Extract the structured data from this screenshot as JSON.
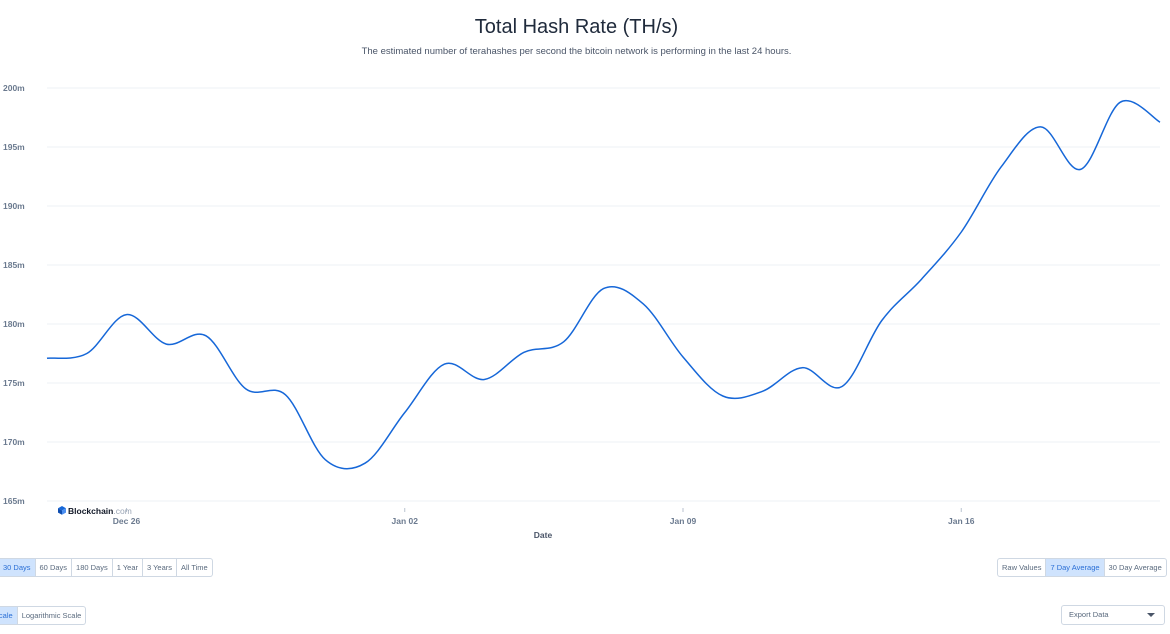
{
  "chart_data": {
    "type": "line",
    "title": "Total Hash Rate (TH/s)",
    "subtitle": "The estimated number of terahashes per second the bitcoin network is performing in the last 24 hours.",
    "xlabel": "Date",
    "ylabel": "",
    "ylim": [
      165000000,
      200000000
    ],
    "y_ticks": [
      165000000,
      170000000,
      175000000,
      180000000,
      185000000,
      190000000,
      195000000,
      200000000
    ],
    "y_tick_labels": [
      "165m",
      "170m",
      "175m",
      "180m",
      "185m",
      "190m",
      "195m",
      "200m"
    ],
    "x_ticks": [
      "2023-12-26",
      "2024-01-02",
      "2024-01-09",
      "2024-01-16"
    ],
    "x_tick_labels": [
      "Dec 26",
      "Jan 02",
      "Jan 09",
      "Jan 16"
    ],
    "x_range": [
      "2023-12-24",
      "2024-01-21"
    ],
    "grid": true,
    "color": "#1667d8",
    "series": [
      {
        "x": [
          "2023-12-24",
          "2023-12-25",
          "2023-12-26",
          "2023-12-27",
          "2023-12-28",
          "2023-12-29",
          "2023-12-30",
          "2023-12-31",
          "2024-01-01",
          "2024-01-02",
          "2024-01-03",
          "2024-01-04",
          "2024-01-05",
          "2024-01-06",
          "2024-01-07",
          "2024-01-08",
          "2024-01-09",
          "2024-01-10",
          "2024-01-11",
          "2024-01-12",
          "2024-01-13",
          "2024-01-14",
          "2024-01-15",
          "2024-01-16",
          "2024-01-17",
          "2024-01-18",
          "2024-01-19",
          "2024-01-20",
          "2024-01-21"
        ],
        "values": [
          177100000,
          177500000,
          180800000,
          178300000,
          179000000,
          174500000,
          174000000,
          168500000,
          168200000,
          172500000,
          176600000,
          175300000,
          177600000,
          178500000,
          183000000,
          181700000,
          177200000,
          173900000,
          174300000,
          176300000,
          174700000,
          180300000,
          183800000,
          187800000,
          193300000,
          196700000,
          193100000,
          198800000,
          197100000
        ]
      }
    ]
  },
  "branding": {
    "name": "Blockchain",
    "suffix": ".com"
  },
  "controls": {
    "periods": [
      "30 Days",
      "60 Days",
      "180 Days",
      "1 Year",
      "3 Years",
      "All Time"
    ],
    "averages": [
      "Raw Values",
      "7 Day Average",
      "30 Day Average"
    ],
    "scales": [
      "Linear Scale",
      "Logarithmic Scale"
    ],
    "export_label": "Export Data"
  }
}
